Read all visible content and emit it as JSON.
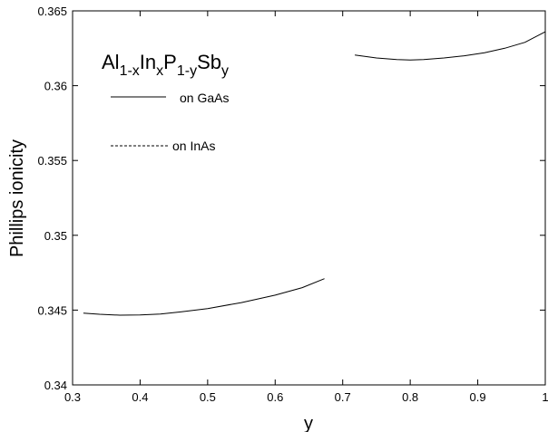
{
  "chart_data": {
    "type": "line",
    "title": "",
    "xlabel": "y",
    "ylabel": "Phillips ionicity",
    "xlim": [
      0.3,
      1.0
    ],
    "ylim": [
      0.34,
      0.365
    ],
    "xticks": [
      0.3,
      0.4,
      0.5,
      0.6,
      0.7,
      0.8,
      0.9,
      1.0
    ],
    "xtick_labels": [
      "0.3",
      "0.4",
      "0.5",
      "0.6",
      "0.7",
      "0.8",
      "0.9",
      "1"
    ],
    "yticks": [
      0.34,
      0.345,
      0.35,
      0.355,
      0.36,
      0.365
    ],
    "ytick_labels": [
      "0.34",
      "0.345",
      "0.35",
      "0.355",
      "0.36",
      "0.365"
    ],
    "grid": false,
    "legend_title": {
      "base": [
        "Al",
        "In",
        "P",
        "Sb"
      ],
      "subscripts": [
        "1-x",
        "x",
        "1-y",
        "y"
      ]
    },
    "legend_position": "top-left",
    "series": [
      {
        "name": "on GaAs",
        "style": "solid",
        "color": "#000000",
        "x": [
          0.316,
          0.34,
          0.37,
          0.4,
          0.43,
          0.46,
          0.5,
          0.55,
          0.6,
          0.64,
          0.673
        ],
        "y": [
          0.3448,
          0.34472,
          0.34466,
          0.34468,
          0.34474,
          0.34488,
          0.3451,
          0.3455,
          0.346,
          0.3465,
          0.3471
        ]
      },
      {
        "name": "",
        "style": "solid",
        "color": "#000000",
        "x": [
          0.718,
          0.75,
          0.78,
          0.8,
          0.82,
          0.85,
          0.88,
          0.91,
          0.94,
          0.97,
          1.0
        ],
        "y": [
          0.36205,
          0.36185,
          0.36175,
          0.36172,
          0.36175,
          0.36185,
          0.362,
          0.3622,
          0.3625,
          0.3629,
          0.3636
        ]
      }
    ],
    "legend_entries": [
      {
        "label": "on GaAs",
        "style": "solid"
      },
      {
        "label": "on InAs",
        "style": "dashed"
      }
    ]
  }
}
